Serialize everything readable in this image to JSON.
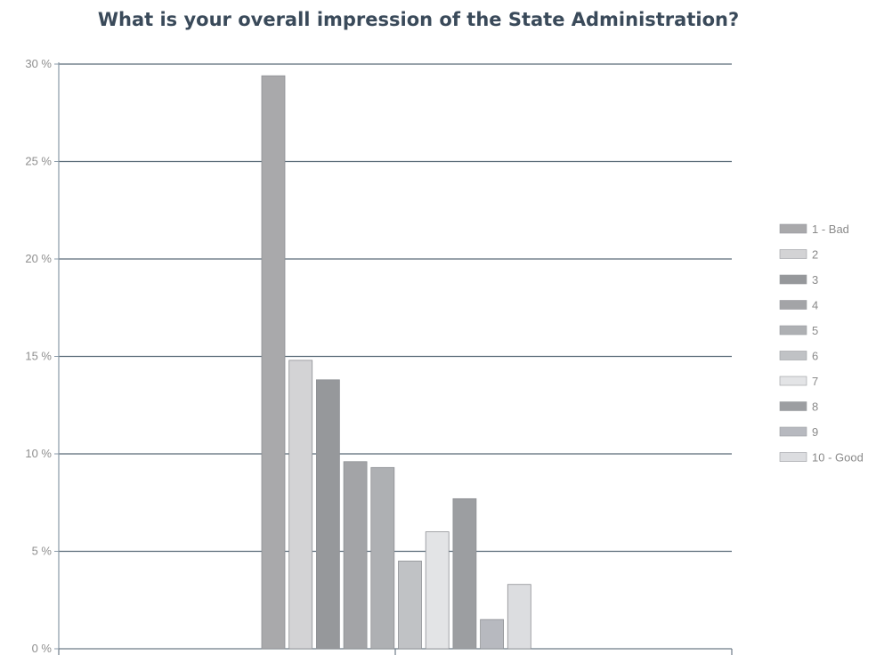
{
  "chart_data": {
    "type": "bar",
    "title": "What is your overall impression of the State Administration?",
    "xlabel": "",
    "ylabel": "",
    "ylim": [
      0,
      30
    ],
    "yticks": [
      {
        "value": 0,
        "label": "0 %"
      },
      {
        "value": 5,
        "label": "5 %"
      },
      {
        "value": 10,
        "label": "10 %"
      },
      {
        "value": 15,
        "label": "15 %"
      },
      {
        "value": 20,
        "label": "20 %"
      },
      {
        "value": 25,
        "label": "25 %"
      },
      {
        "value": 30,
        "label": "30 %"
      }
    ],
    "grid": true,
    "legend_position": "right",
    "series": [
      {
        "name": "1 - Bad",
        "value": 29.4,
        "color": "#a9a9ab"
      },
      {
        "name": "2",
        "value": 14.8,
        "color": "#d3d3d5"
      },
      {
        "name": "3",
        "value": 13.8,
        "color": "#96989b"
      },
      {
        "name": "4",
        "value": 9.6,
        "color": "#a3a4a7"
      },
      {
        "name": "5",
        "value": 9.3,
        "color": "#aeb0b3"
      },
      {
        "name": "6",
        "value": 4.5,
        "color": "#c0c2c5"
      },
      {
        "name": "7",
        "value": 6.0,
        "color": "#e3e4e6"
      },
      {
        "name": "8",
        "value": 7.7,
        "color": "#9c9ea1"
      },
      {
        "name": "9",
        "value": 1.5,
        "color": "#b7b9bf"
      },
      {
        "name": "10 - Good",
        "value": 3.3,
        "color": "#dcdde0"
      }
    ]
  }
}
